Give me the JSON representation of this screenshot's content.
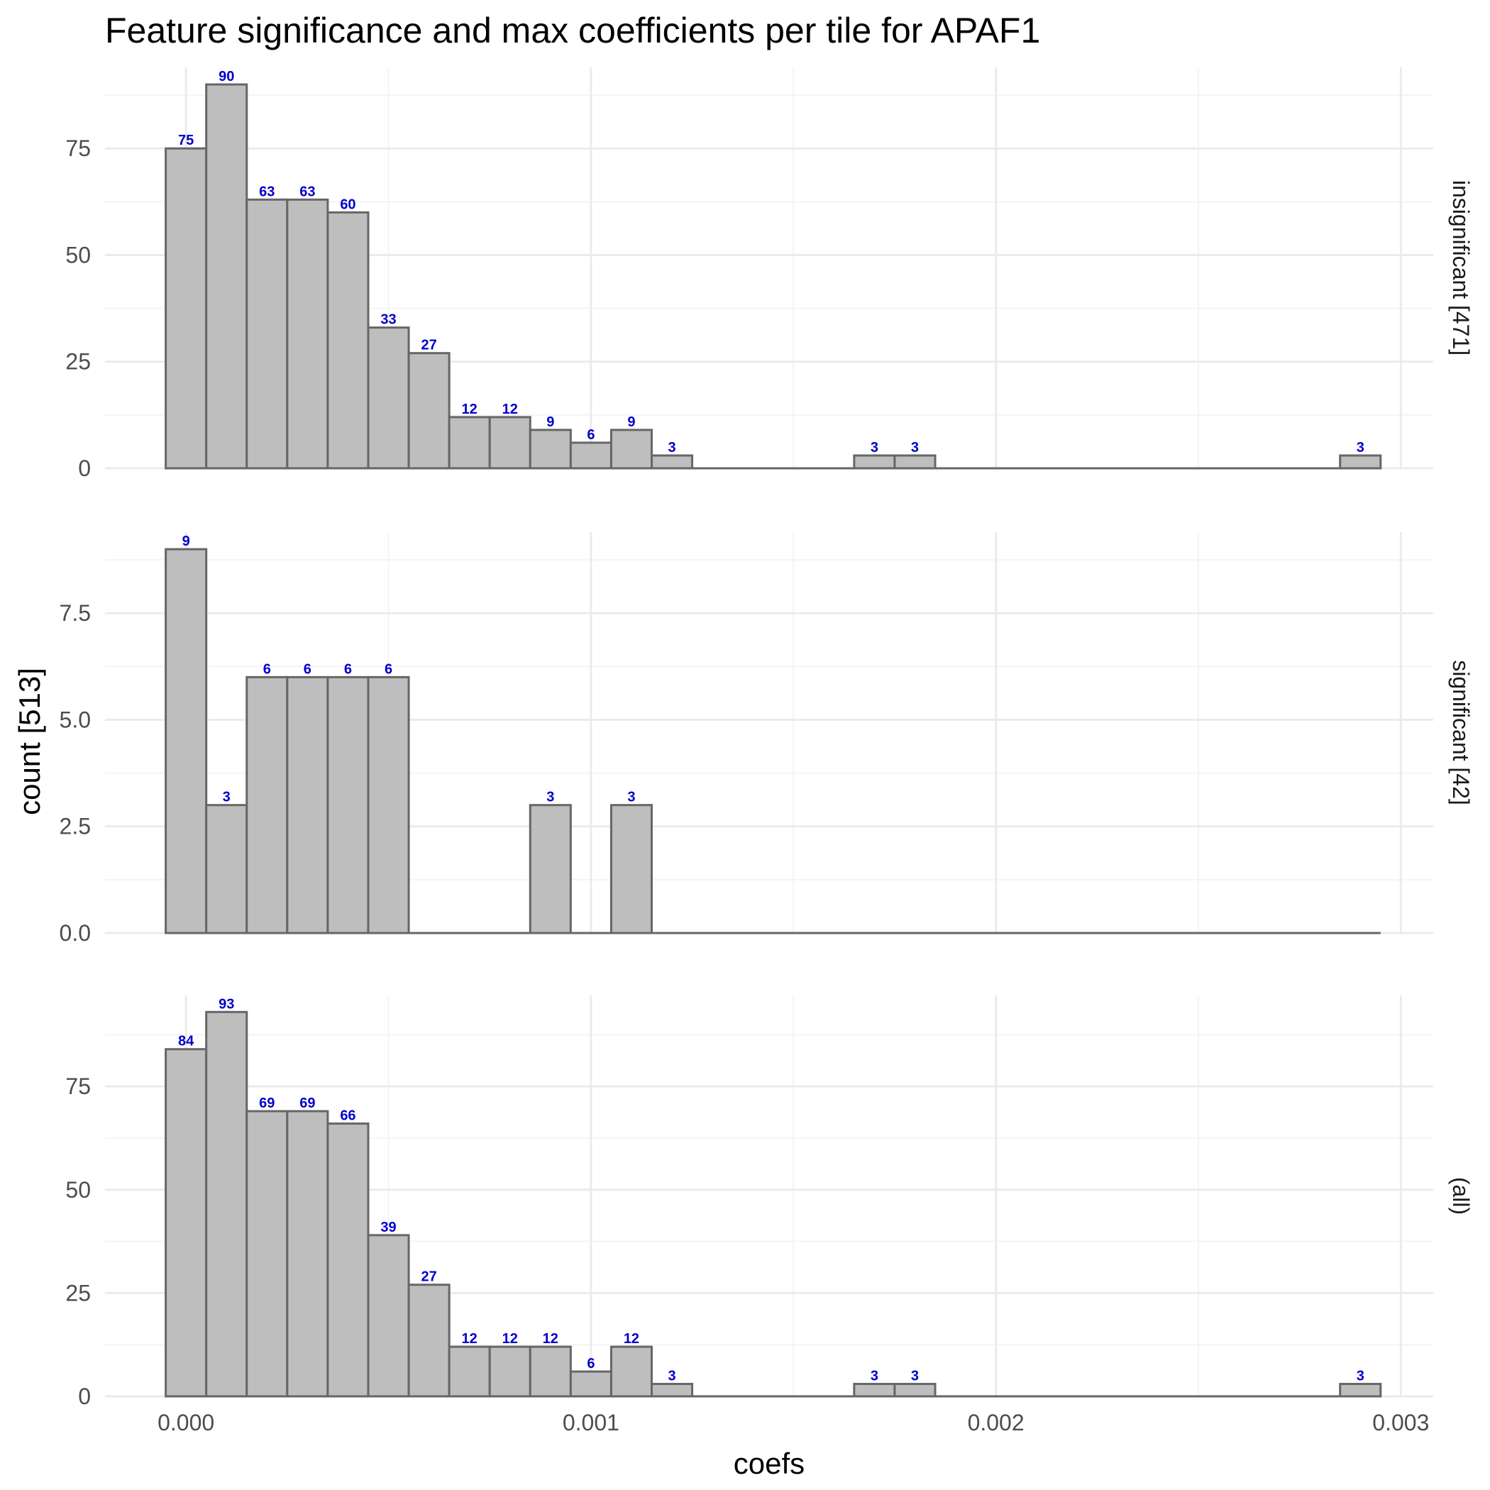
{
  "chart_data": {
    "type": "bar",
    "title": "Feature significance and max coefficients per tile for APAF1",
    "xlabel": "coefs",
    "ylabel": "count [513]",
    "x_ticks": [
      "0.000",
      "0.001",
      "0.002",
      "0.003"
    ],
    "x_tick_values": [
      0,
      0.001,
      0.002,
      0.003
    ],
    "xlim": [
      -0.0002,
      0.00308
    ],
    "bin_width": 0.0001,
    "grid": true,
    "panels": [
      {
        "label": "insignificant [471]",
        "ylim": [
          0,
          94
        ],
        "y_ticks": [
          0,
          25,
          50,
          75
        ],
        "y_tick_labels": [
          "0",
          "25",
          "50",
          "75"
        ],
        "bins": [
          {
            "x": 0.0,
            "count": 75
          },
          {
            "x": 0.0001,
            "count": 90
          },
          {
            "x": 0.0002,
            "count": 63
          },
          {
            "x": 0.0003,
            "count": 63
          },
          {
            "x": 0.0004,
            "count": 60
          },
          {
            "x": 0.0005,
            "count": 33
          },
          {
            "x": 0.0006,
            "count": 27
          },
          {
            "x": 0.0007,
            "count": 12
          },
          {
            "x": 0.0008,
            "count": 12
          },
          {
            "x": 0.0009,
            "count": 9
          },
          {
            "x": 0.001,
            "count": 6
          },
          {
            "x": 0.0011,
            "count": 9
          },
          {
            "x": 0.0012,
            "count": 3
          },
          {
            "x": 0.0017,
            "count": 3
          },
          {
            "x": 0.0018,
            "count": 3
          },
          {
            "x": 0.0029,
            "count": 3
          }
        ]
      },
      {
        "label": "significant [42]",
        "ylim": [
          0,
          9.4
        ],
        "y_ticks": [
          0,
          2.5,
          5,
          7.5
        ],
        "y_tick_labels": [
          "0.0",
          "2.5",
          "5.0",
          "7.5"
        ],
        "bins": [
          {
            "x": 0.0,
            "count": 9
          },
          {
            "x": 0.0001,
            "count": 3
          },
          {
            "x": 0.0002,
            "count": 6
          },
          {
            "x": 0.0003,
            "count": 6
          },
          {
            "x": 0.0004,
            "count": 6
          },
          {
            "x": 0.0005,
            "count": 6
          },
          {
            "x": 0.0009,
            "count": 3
          },
          {
            "x": 0.0011,
            "count": 3
          }
        ]
      },
      {
        "label": "(all)",
        "ylim": [
          0,
          97
        ],
        "y_ticks": [
          0,
          25,
          50,
          75
        ],
        "y_tick_labels": [
          "0",
          "25",
          "50",
          "75"
        ],
        "bins": [
          {
            "x": 0.0,
            "count": 84
          },
          {
            "x": 0.0001,
            "count": 93
          },
          {
            "x": 0.0002,
            "count": 69
          },
          {
            "x": 0.0003,
            "count": 69
          },
          {
            "x": 0.0004,
            "count": 66
          },
          {
            "x": 0.0005,
            "count": 39
          },
          {
            "x": 0.0006,
            "count": 27
          },
          {
            "x": 0.0007,
            "count": 12
          },
          {
            "x": 0.0008,
            "count": 12
          },
          {
            "x": 0.0009,
            "count": 12
          },
          {
            "x": 0.001,
            "count": 6
          },
          {
            "x": 0.0011,
            "count": 12
          },
          {
            "x": 0.0012,
            "count": 3
          },
          {
            "x": 0.0017,
            "count": 3
          },
          {
            "x": 0.0018,
            "count": 3
          },
          {
            "x": 0.0029,
            "count": 3
          }
        ]
      }
    ],
    "colors": {
      "bar_fill": "#bebebe",
      "bar_stroke": "#666666",
      "bar_label": "#0000cc",
      "grid_major": "#ebebeb",
      "grid_minor": "#f4f4f4"
    }
  }
}
